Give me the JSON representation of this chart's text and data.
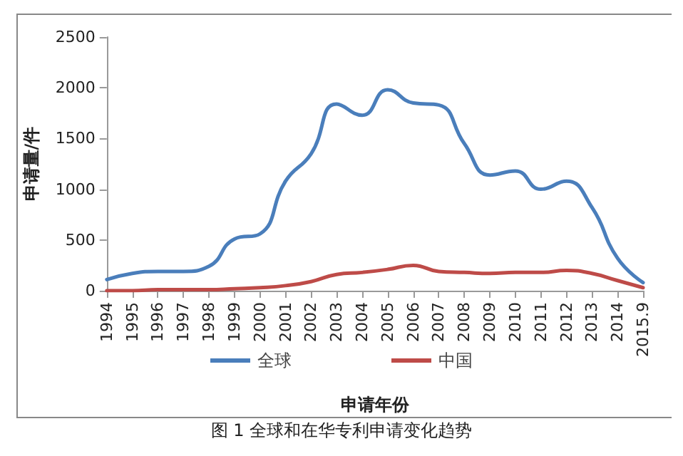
{
  "chart_data": {
    "type": "line",
    "ylabel": "申请量/件",
    "xlabel": "申请年份",
    "annotations": [
      "图 1 全球和在华专利申请变化趋势"
    ],
    "categories": [
      "1994",
      "1995",
      "1996",
      "1997",
      "1998",
      "1999",
      "2000",
      "2001",
      "2002",
      "2003",
      "2004",
      "2005",
      "2006",
      "2007",
      "2008",
      "2009",
      "2010",
      "2011",
      "2012",
      "2013",
      "2014",
      "2015.9"
    ],
    "series": [
      {
        "name": "全球",
        "color": "#4a7ebb",
        "values": [
          110,
          170,
          190,
          190,
          240,
          510,
          560,
          1080,
          1350,
          1840,
          1730,
          1980,
          1850,
          1830,
          1450,
          1140,
          1180,
          1000,
          1080,
          820,
          320,
          80
        ]
      },
      {
        "name": "中国",
        "color": "#be4b48",
        "values": [
          0,
          0,
          10,
          10,
          10,
          20,
          30,
          50,
          90,
          160,
          180,
          210,
          250,
          190,
          180,
          170,
          180,
          180,
          200,
          170,
          100,
          30
        ]
      }
    ],
    "ylim": [
      0,
      2500
    ],
    "yticks": [
      0,
      500,
      1000,
      1500,
      2000,
      2500
    ],
    "grid": false,
    "legend": "bottom",
    "marker": "none",
    "line_style": "solid"
  }
}
